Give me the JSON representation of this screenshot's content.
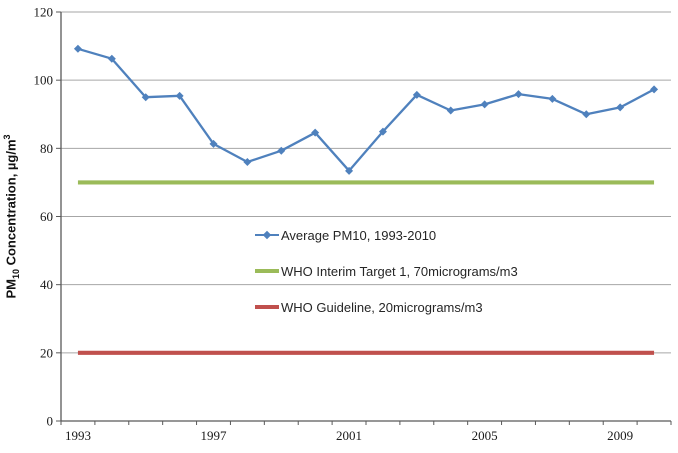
{
  "chart_data": {
    "type": "line",
    "x_categories": [
      "1993",
      "1994",
      "1995",
      "1996",
      "1997",
      "1998",
      "1999",
      "2000",
      "2001",
      "2002",
      "2003",
      "2004",
      "2005",
      "2006",
      "2007",
      "2008",
      "2009",
      "2010"
    ],
    "series": [
      {
        "name": "Average PM10, 1993-2010",
        "kind": "data",
        "color": "#4F81BD",
        "marker": "diamond",
        "values": [
          109.2,
          106.3,
          95.0,
          95.4,
          81.3,
          76.0,
          79.3,
          84.6,
          73.4,
          84.9,
          95.7,
          91.1,
          92.9,
          95.9,
          94.5,
          90.0,
          92.0,
          97.3
        ]
      },
      {
        "name": "WHO Interim Target 1, 70micrograms/m3",
        "kind": "reference",
        "color": "#9BBB59",
        "value": 70
      },
      {
        "name": "WHO Guideline, 20micrograms/m3",
        "kind": "reference",
        "color": "#C0504D",
        "value": 20
      }
    ],
    "ylabel": "PM10 Concentration, µg/m3",
    "ylabel_parts": {
      "prefix": "PM",
      "sub": "10",
      "mid": " Concentration, µg/m",
      "sup": "3"
    },
    "ylim": [
      0,
      120
    ],
    "yticks": [
      0,
      20,
      40,
      60,
      80,
      100,
      120
    ],
    "xtick_labels": [
      "1993",
      "1997",
      "2001",
      "2005",
      "2009"
    ],
    "xtick_indices": [
      0,
      4,
      8,
      12,
      16
    ],
    "grid": "horizontal",
    "legend_position": "center-overlay",
    "colors": {
      "gridline": "#A6A6A6",
      "axis": "#595959",
      "tick_text": "#1a1a1a",
      "background": "#FFFFFF"
    }
  }
}
